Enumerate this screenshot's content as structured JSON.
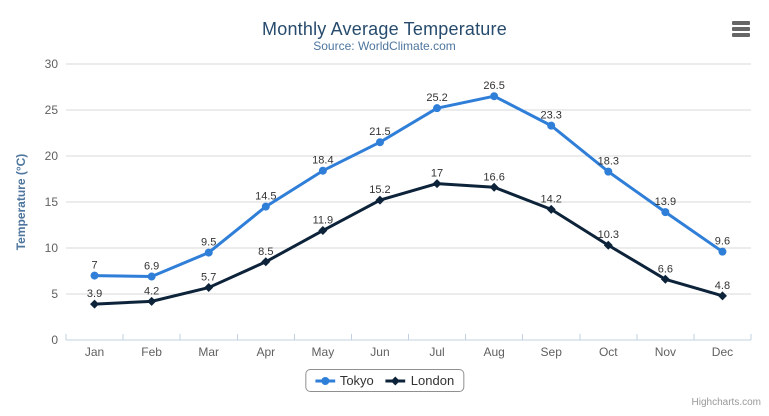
{
  "header": {
    "title": "Monthly Average Temperature",
    "subtitle": "Source: WorldClimate.com"
  },
  "credits": "Highcharts.com",
  "icons": {
    "export_menu": "hamburger-menu-icon",
    "tokyo_marker": "circle",
    "london_marker": "diamond"
  },
  "colors": {
    "tokyo": "#2f7ed8",
    "london": "#0d233a",
    "title": "#274b6d",
    "subtitle": "#4d759e",
    "axis_labels": "#606060",
    "gridline": "#d8d8d8",
    "axis_line": "#c0d0e0"
  },
  "chart_data": {
    "type": "line",
    "title": "Monthly Average Temperature",
    "subtitle": "Source: WorldClimate.com",
    "categories": [
      "Jan",
      "Feb",
      "Mar",
      "Apr",
      "May",
      "Jun",
      "Jul",
      "Aug",
      "Sep",
      "Oct",
      "Nov",
      "Dec"
    ],
    "series": [
      {
        "name": "Tokyo",
        "color": "#2f7ed8",
        "marker": "circle",
        "values": [
          7,
          6.9,
          9.5,
          14.5,
          18.4,
          21.5,
          25.2,
          26.5,
          23.3,
          18.3,
          13.9,
          9.6
        ]
      },
      {
        "name": "London",
        "color": "#0d233a",
        "marker": "diamond",
        "values": [
          3.9,
          4.2,
          5.7,
          8.5,
          11.9,
          15.2,
          17,
          16.6,
          14.2,
          10.3,
          6.6,
          4.8
        ]
      }
    ],
    "xlabel": "",
    "ylabel": "Temperature (°C)",
    "ylim": [
      0,
      30
    ],
    "ytick_step": 5,
    "grid": true,
    "data_labels": true,
    "legend_position": "bottom-center"
  }
}
